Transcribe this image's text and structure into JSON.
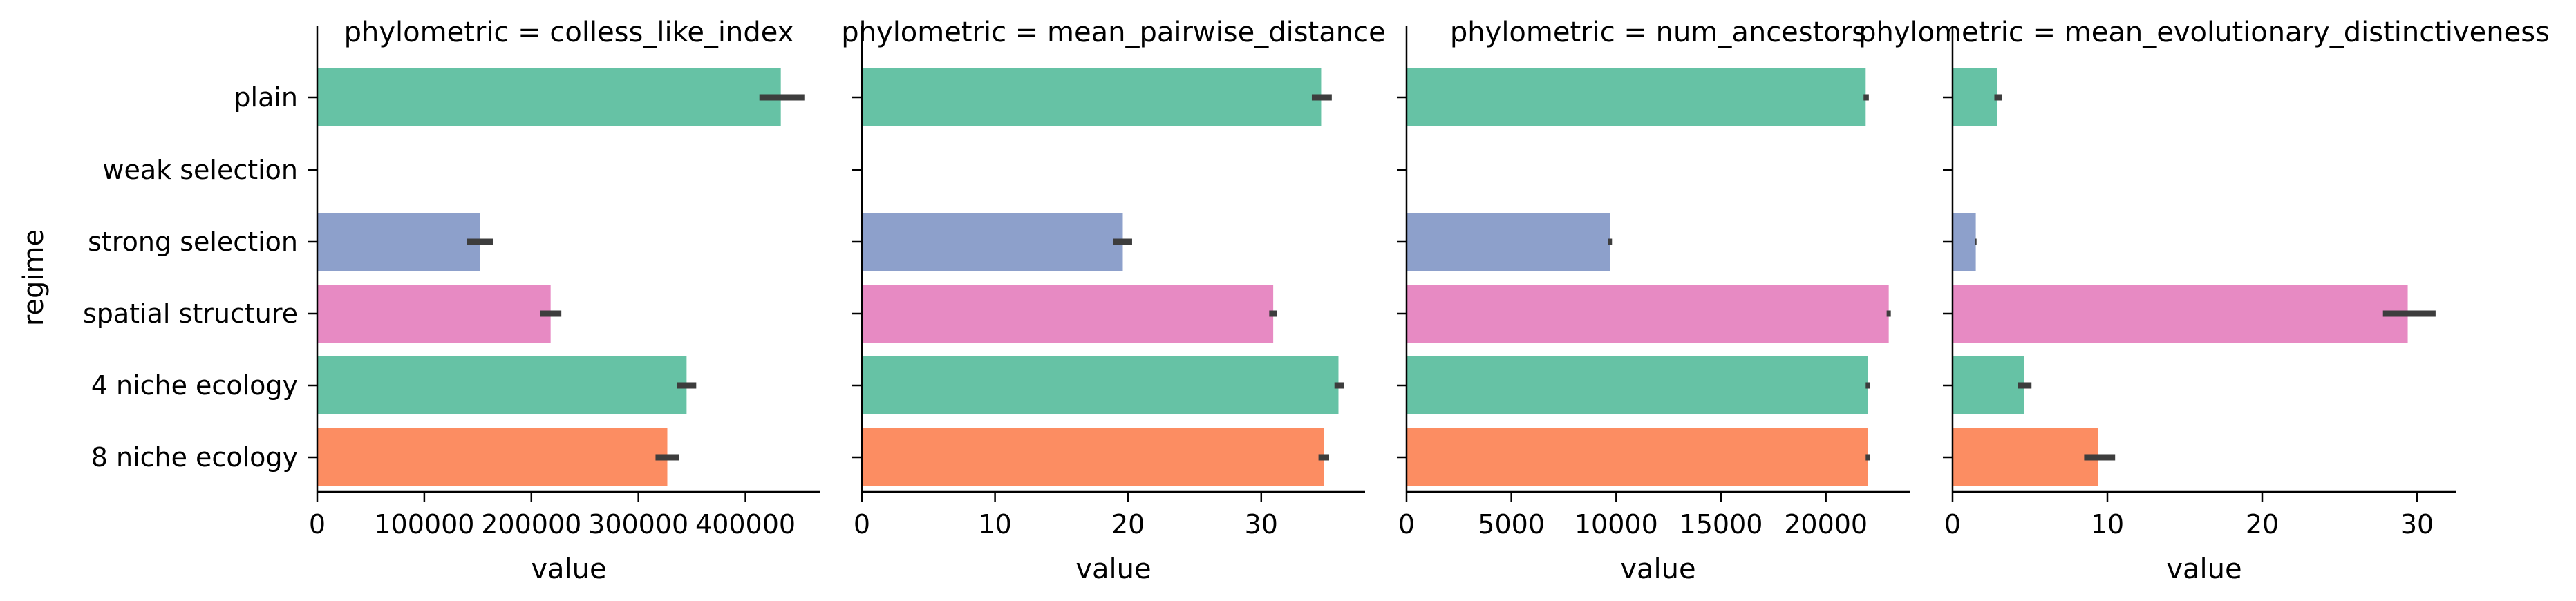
{
  "chart_data": {
    "type": "bar",
    "orientation": "horizontal",
    "facet_variable": "phylometric",
    "ylabel": "regime",
    "categories": [
      "plain",
      "weak selection",
      "strong selection",
      "spatial structure",
      "4 niche ecology",
      "8 niche ecology"
    ],
    "colors": [
      "#66c2a5",
      "#fc8d62",
      "#8da0cb",
      "#e78ac3",
      "#66c2a5",
      "#fc8d62"
    ],
    "panels": [
      {
        "title": "phylometric = colless_like_index",
        "xlabel": "value",
        "xlim": [
          0,
          470000
        ],
        "xticks": [
          0,
          100000,
          200000,
          300000,
          400000
        ],
        "xtick_labels": [
          "0",
          "100000",
          "200000",
          "300000",
          "400000"
        ],
        "values": [
          433000,
          null,
          152000,
          218000,
          345000,
          327000
        ],
        "ci": [
          [
            413000,
            455000
          ],
          null,
          [
            140000,
            164000
          ],
          [
            208000,
            228000
          ],
          [
            336000,
            354000
          ],
          [
            316000,
            338000
          ]
        ]
      },
      {
        "title": "phylometric = mean_pairwise_distance",
        "xlabel": "value",
        "xlim": [
          0,
          37.8
        ],
        "xticks": [
          0,
          10,
          20,
          30
        ],
        "xtick_labels": [
          "0",
          "10",
          "20",
          "30"
        ],
        "values": [
          34.5,
          null,
          19.6,
          30.9,
          35.8,
          34.7
        ],
        "ci": [
          [
            33.8,
            35.3
          ],
          null,
          [
            18.9,
            20.3
          ],
          [
            30.6,
            31.2
          ],
          [
            35.5,
            36.2
          ],
          [
            34.3,
            35.1
          ]
        ]
      },
      {
        "title": "phylometric = num_ancestors",
        "xlabel": "value",
        "xlim": [
          0,
          24000
        ],
        "xticks": [
          0,
          5000,
          10000,
          15000,
          20000
        ],
        "xtick_labels": [
          "0",
          "5000",
          "10000",
          "15000",
          "20000"
        ],
        "values": [
          21900,
          null,
          9700,
          23000,
          22000,
          22000
        ],
        "ci": [
          [
            21800,
            22050
          ],
          null,
          [
            9600,
            9800
          ],
          [
            22900,
            23100
          ],
          [
            21900,
            22100
          ],
          [
            21900,
            22100
          ]
        ]
      },
      {
        "title": "phylometric = mean_evolutionary_distinctiveness",
        "xlabel": "value",
        "xlim": [
          0,
          32.5
        ],
        "xticks": [
          0,
          10,
          20,
          30
        ],
        "xtick_labels": [
          "0",
          "10",
          "20",
          "30"
        ],
        "values": [
          2.9,
          null,
          1.5,
          29.4,
          4.6,
          9.4
        ],
        "ci": [
          [
            2.7,
            3.2
          ],
          null,
          [
            1.45,
            1.55
          ],
          [
            27.8,
            31.2
          ],
          [
            4.2,
            5.1
          ],
          [
            8.5,
            10.5
          ]
        ]
      }
    ]
  }
}
